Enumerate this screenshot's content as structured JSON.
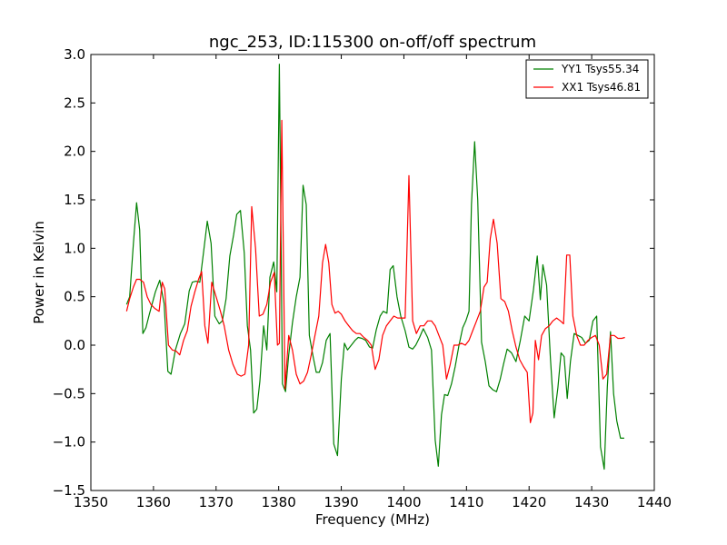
{
  "chart_data": {
    "type": "line",
    "title": "ngc_253, ID:115300 on-off/off spectrum",
    "xlabel": "Frequency (MHz)",
    "ylabel": "Power in Kelvin",
    "xlim": [
      1350,
      1440
    ],
    "ylim": [
      -1.5,
      3.0
    ],
    "xticks": [
      1350,
      1360,
      1370,
      1380,
      1390,
      1400,
      1410,
      1420,
      1430,
      1440
    ],
    "yticks": [
      -1.5,
      -1.0,
      -0.5,
      0.0,
      0.5,
      1.0,
      1.5,
      2.0,
      2.5,
      3.0
    ],
    "xtick_labels": [
      "1350",
      "1360",
      "1370",
      "1380",
      "1390",
      "1400",
      "1410",
      "1420",
      "1430",
      "1440"
    ],
    "ytick_labels": [
      "−1.5",
      "−1.0",
      "−0.5",
      "0.0",
      "0.5",
      "1.0",
      "1.5",
      "2.0",
      "2.5",
      "3.0"
    ],
    "grid": false,
    "legend_position": "top-right",
    "series": [
      {
        "name": "YY1 Tsys55.34",
        "color": "#008000",
        "x": [
          1355.7,
          1356.2,
          1356.8,
          1357.3,
          1357.8,
          1358.3,
          1358.8,
          1359.3,
          1360.3,
          1361.0,
          1361.7,
          1362.3,
          1362.8,
          1363.5,
          1364.3,
          1365.0,
          1365.7,
          1366.2,
          1366.8,
          1367.4,
          1368.0,
          1368.6,
          1369.2,
          1369.8,
          1370.5,
          1371.0,
          1371.6,
          1372.2,
          1372.8,
          1373.3,
          1373.9,
          1374.5,
          1375.0,
          1375.5,
          1376.0,
          1376.5,
          1377.0,
          1377.6,
          1378.1,
          1378.6,
          1379.2,
          1379.7,
          1380.1,
          1380.6,
          1381.1,
          1381.6,
          1382.2,
          1382.8,
          1383.4,
          1383.9,
          1384.4,
          1384.9,
          1385.5,
          1386.0,
          1386.5,
          1387.0,
          1387.6,
          1388.2,
          1388.8,
          1389.4,
          1390.0,
          1390.5,
          1391.0,
          1391.6,
          1392.2,
          1392.7,
          1393.3,
          1393.9,
          1394.5,
          1395.0,
          1395.6,
          1396.2,
          1396.7,
          1397.3,
          1397.8,
          1398.3,
          1398.9,
          1399.5,
          1400.2,
          1400.8,
          1401.4,
          1401.9,
          1402.5,
          1403.1,
          1403.8,
          1404.4,
          1405.0,
          1405.5,
          1406.0,
          1406.5,
          1407.0,
          1407.6,
          1408.2,
          1408.8,
          1409.4,
          1409.9,
          1410.4,
          1410.8,
          1411.3,
          1411.8,
          1412.4,
          1413.0,
          1413.6,
          1414.2,
          1414.8,
          1415.4,
          1415.9,
          1416.5,
          1417.2,
          1417.9,
          1418.6,
          1419.3,
          1420.0,
          1420.7,
          1421.3,
          1421.8,
          1422.2,
          1422.8,
          1423.4,
          1424.0,
          1424.6,
          1425.1,
          1425.6,
          1426.1,
          1426.6,
          1427.2,
          1427.8,
          1428.4,
          1429.0,
          1429.6,
          1430.2,
          1430.8,
          1431.4,
          1432.0,
          1432.5,
          1433.0,
          1433.5,
          1434.0,
          1434.6,
          1435.2
        ],
        "y": [
          0.42,
          0.5,
          1.05,
          1.47,
          1.19,
          0.12,
          0.18,
          0.31,
          0.55,
          0.67,
          0.43,
          -0.27,
          -0.3,
          -0.05,
          0.12,
          0.22,
          0.56,
          0.65,
          0.66,
          0.65,
          0.96,
          1.28,
          1.05,
          0.3,
          0.22,
          0.25,
          0.48,
          0.92,
          1.14,
          1.35,
          1.39,
          0.95,
          0.2,
          -0.05,
          -0.7,
          -0.66,
          -0.37,
          0.2,
          -0.05,
          0.7,
          0.86,
          0.55,
          2.9,
          -0.4,
          -0.48,
          -0.1,
          0.23,
          0.5,
          0.7,
          1.65,
          1.45,
          0.1,
          -0.12,
          -0.28,
          -0.28,
          -0.18,
          0.05,
          0.12,
          -1.02,
          -1.14,
          -0.35,
          0.02,
          -0.05,
          0.0,
          0.05,
          0.08,
          0.07,
          0.05,
          -0.02,
          -0.03,
          0.16,
          0.3,
          0.35,
          0.33,
          0.78,
          0.82,
          0.5,
          0.3,
          0.15,
          -0.02,
          -0.04,
          0.0,
          0.08,
          0.17,
          0.08,
          -0.05,
          -0.98,
          -1.25,
          -0.72,
          -0.51,
          -0.52,
          -0.4,
          -0.22,
          0.0,
          0.18,
          0.25,
          0.35,
          1.45,
          2.1,
          1.5,
          0.03,
          -0.17,
          -0.42,
          -0.46,
          -0.48,
          -0.35,
          -0.2,
          -0.04,
          -0.08,
          -0.17,
          0.05,
          0.3,
          0.25,
          0.57,
          0.92,
          0.47,
          0.83,
          0.62,
          -0.12,
          -0.75,
          -0.44,
          -0.08,
          -0.12,
          -0.55,
          -0.17,
          0.12,
          0.1,
          0.08,
          0.02,
          0.05,
          0.25,
          0.3,
          -1.05,
          -1.28,
          -0.43,
          0.14,
          -0.5,
          -0.78,
          -0.96,
          -0.96
        ]
      },
      {
        "name": "XX1 Tsys46.81",
        "color": "#ff0000",
        "x": [
          1355.7,
          1356.2,
          1356.8,
          1357.3,
          1357.8,
          1358.4,
          1359.0,
          1359.6,
          1360.2,
          1360.9,
          1361.4,
          1361.8,
          1362.4,
          1363.0,
          1363.6,
          1364.2,
          1364.8,
          1365.4,
          1366.0,
          1366.6,
          1367.2,
          1367.7,
          1368.2,
          1368.7,
          1369.3,
          1370.0,
          1370.7,
          1371.3,
          1372.0,
          1372.7,
          1373.4,
          1374.0,
          1374.6,
          1375.2,
          1375.7,
          1376.3,
          1376.9,
          1377.5,
          1378.1,
          1378.7,
          1379.3,
          1379.8,
          1380.1,
          1380.5,
          1381.0,
          1381.6,
          1382.2,
          1382.8,
          1383.4,
          1384.0,
          1384.6,
          1385.2,
          1385.8,
          1386.4,
          1387.0,
          1387.5,
          1388.0,
          1388.5,
          1389.0,
          1389.5,
          1390.0,
          1390.6,
          1391.2,
          1391.8,
          1392.4,
          1393.0,
          1393.6,
          1394.2,
          1394.8,
          1395.4,
          1396.0,
          1396.6,
          1397.2,
          1397.8,
          1398.4,
          1399.0,
          1399.6,
          1400.2,
          1400.8,
          1401.4,
          1402.0,
          1402.6,
          1403.2,
          1403.8,
          1404.4,
          1405.0,
          1405.6,
          1406.2,
          1406.8,
          1407.4,
          1408.0,
          1408.6,
          1409.2,
          1409.8,
          1410.4,
          1411.0,
          1411.6,
          1412.2,
          1412.8,
          1413.3,
          1413.8,
          1414.3,
          1414.9,
          1415.5,
          1416.1,
          1416.7,
          1417.3,
          1417.9,
          1418.5,
          1419.1,
          1419.7,
          1420.2,
          1420.6,
          1421.0,
          1421.5,
          1422.0,
          1422.6,
          1423.2,
          1423.8,
          1424.4,
          1425.0,
          1425.5,
          1426.0,
          1426.5,
          1427.0,
          1427.6,
          1428.2,
          1428.8,
          1429.4,
          1430.0,
          1430.6,
          1431.2,
          1431.8,
          1432.4,
          1433.0,
          1433.6,
          1434.2,
          1434.8,
          1435.3
        ],
        "y": [
          0.35,
          0.48,
          0.6,
          0.68,
          0.68,
          0.65,
          0.5,
          0.42,
          0.38,
          0.35,
          0.65,
          0.58,
          0.0,
          -0.05,
          -0.06,
          -0.1,
          0.05,
          0.15,
          0.4,
          0.55,
          0.68,
          0.76,
          0.2,
          0.02,
          0.65,
          0.5,
          0.35,
          0.2,
          -0.05,
          -0.2,
          -0.3,
          -0.32,
          -0.3,
          0.0,
          1.43,
          1.0,
          0.3,
          0.32,
          0.42,
          0.65,
          0.75,
          0.0,
          0.02,
          2.32,
          -0.45,
          0.1,
          -0.05,
          -0.3,
          -0.4,
          -0.37,
          -0.28,
          -0.1,
          0.1,
          0.3,
          0.85,
          1.04,
          0.85,
          0.42,
          0.33,
          0.35,
          0.32,
          0.25,
          0.2,
          0.15,
          0.12,
          0.12,
          0.08,
          0.05,
          0.0,
          -0.25,
          -0.15,
          0.1,
          0.2,
          0.25,
          0.3,
          0.28,
          0.28,
          0.28,
          1.75,
          0.25,
          0.12,
          0.2,
          0.2,
          0.25,
          0.25,
          0.2,
          0.1,
          0.0,
          -0.35,
          -0.2,
          0.0,
          0.0,
          0.02,
          0.0,
          0.05,
          0.15,
          0.25,
          0.35,
          0.6,
          0.65,
          1.1,
          1.3,
          1.05,
          0.48,
          0.45,
          0.35,
          0.15,
          -0.02,
          -0.15,
          -0.22,
          -0.28,
          -0.8,
          -0.7,
          0.05,
          -0.15,
          0.1,
          0.17,
          0.2,
          0.25,
          0.28,
          0.25,
          0.22,
          0.93,
          0.93,
          0.3,
          0.1,
          0.0,
          0.0,
          0.05,
          0.08,
          0.1,
          0.0,
          -0.35,
          -0.3,
          0.1,
          0.1,
          0.07,
          0.07,
          0.08
        ]
      }
    ]
  }
}
